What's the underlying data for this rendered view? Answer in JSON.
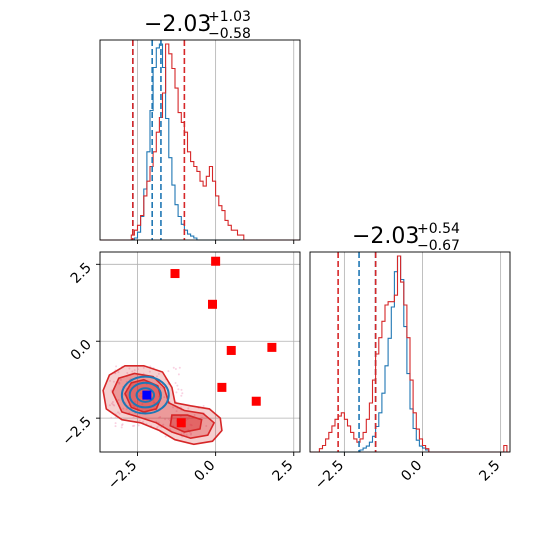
{
  "titles": {
    "p1": {
      "median": "−2.03",
      "plus": "+1.03",
      "minus": "−0.58"
    },
    "p2": {
      "median": "−2.03",
      "plus": "+0.54",
      "minus": "−0.67"
    }
  },
  "colors": {
    "blue": "#1f77b4",
    "red": "#d62728",
    "marker_red": "#ff0000",
    "marker_blue": "#0000ff",
    "grid": "#b0b0b0"
  },
  "chart_data": {
    "type": "corner",
    "x_ticks": [
      {
        "value": -2.5,
        "label": "−2.5"
      },
      {
        "value": 0.0,
        "label": "0.0"
      },
      {
        "value": 2.5,
        "label": "2.5"
      }
    ],
    "y_ticks": [
      {
        "value": 2.5,
        "label": "2.5"
      },
      {
        "value": 0.0,
        "label": "0.0"
      },
      {
        "value": -2.5,
        "label": "−2.5"
      }
    ],
    "limits": {
      "x": [
        -3.7,
        2.7
      ],
      "y": [
        -3.6,
        2.9
      ],
      "hist2_x": [
        -3.6,
        2.8
      ]
    },
    "hist1": {
      "bin_start": -3.7,
      "bin_width": 0.1,
      "blue": [
        0,
        0,
        0,
        0,
        0,
        0,
        0,
        0,
        0,
        0,
        0,
        1,
        4,
        12,
        26,
        45,
        66,
        88,
        98,
        100,
        88,
        62,
        42,
        28,
        18,
        12,
        8,
        5,
        3,
        2,
        1,
        0,
        0,
        0,
        0,
        0,
        0,
        0,
        0,
        0,
        0,
        0,
        0,
        0,
        0,
        0,
        0,
        0,
        0,
        0,
        0,
        0,
        0,
        0,
        0,
        0,
        0,
        0,
        0,
        0,
        0,
        0,
        0,
        0
      ],
      "red": [
        0,
        0,
        0,
        0,
        0,
        0,
        0,
        0,
        0,
        0,
        1,
        2,
        3,
        5,
        9,
        12,
        15,
        18,
        22,
        25,
        30,
        40,
        38,
        35,
        31,
        26,
        24,
        22,
        18,
        16,
        15,
        14,
        12,
        11,
        13,
        15,
        12,
        9,
        7,
        6,
        4,
        3,
        2,
        2,
        1,
        1,
        0,
        0,
        0,
        0,
        0,
        0,
        0,
        0,
        0,
        0,
        0,
        0,
        0,
        0,
        0,
        0,
        0,
        0
      ],
      "lines_blue": [
        -2.65,
        -2.03,
        -1.75
      ],
      "lines_red": [
        -2.65,
        -1.0
      ]
    },
    "hist2": {
      "bin_start": -3.6,
      "bin_width": 0.1,
      "blue": [
        0,
        0,
        0,
        0,
        0,
        0,
        0,
        0,
        0,
        0,
        0,
        0,
        0,
        0,
        0,
        0,
        1,
        2,
        3,
        5,
        8,
        13,
        20,
        30,
        44,
        58,
        74,
        92,
        100,
        88,
        64,
        40,
        22,
        12,
        6,
        3,
        2,
        1,
        0,
        0,
        0,
        0,
        0,
        0,
        0,
        0,
        0,
        0,
        0,
        0,
        0,
        0,
        0,
        0,
        0,
        0,
        0,
        0,
        0,
        0,
        0,
        0,
        0,
        0
      ],
      "red": [
        0,
        0,
        0,
        1,
        2,
        4,
        6,
        8,
        10,
        11,
        12,
        10,
        8,
        6,
        4,
        3,
        4,
        6,
        10,
        15,
        22,
        30,
        35,
        40,
        45,
        46,
        46,
        48,
        60,
        52,
        45,
        35,
        22,
        12,
        7,
        4,
        2,
        1,
        0,
        0,
        0,
        0,
        0,
        0,
        0,
        0,
        0,
        0,
        0,
        0,
        0,
        0,
        0,
        0,
        0,
        0,
        0,
        0,
        0,
        0,
        0,
        0,
        2,
        0
      ],
      "lines_blue": [
        -2.03,
        -1.5
      ],
      "lines_red": [
        -2.7,
        -1.5
      ]
    },
    "red_points": [
      [
        -1.3,
        2.2
      ],
      [
        0.0,
        2.6
      ],
      [
        -0.1,
        1.2
      ],
      [
        0.5,
        -0.3
      ],
      [
        1.8,
        -0.2
      ],
      [
        0.2,
        -1.5
      ],
      [
        1.3,
        -1.95
      ],
      [
        -1.1,
        -2.65
      ]
    ],
    "blue_point": [
      -2.2,
      -1.75
    ]
  }
}
